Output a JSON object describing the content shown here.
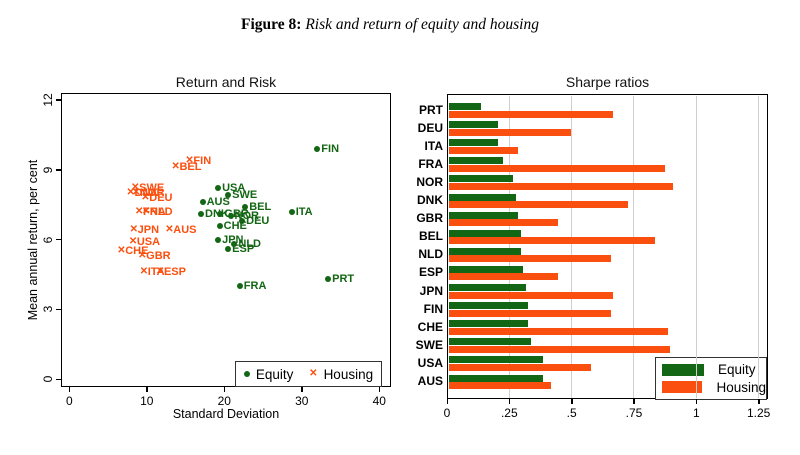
{
  "figure_caption": {
    "label": "Figure 8:",
    "title": "Risk and return of equity and housing"
  },
  "colors": {
    "equity": "#136613",
    "housing": "#fb4f0f",
    "grid": "#cfcfcf",
    "axis": "#000000"
  },
  "chart_data": [
    {
      "id": "return_risk",
      "type": "scatter",
      "title": "Return and Risk",
      "xlabel": "Standard Deviation",
      "ylabel": "Mean annual return, per cent",
      "xlim": [
        0,
        40
      ],
      "ylim": [
        0,
        12
      ],
      "xticks": [
        0,
        10,
        20,
        30,
        40
      ],
      "yticks": [
        0,
        3,
        6,
        9,
        12
      ],
      "grid": false,
      "legend": {
        "position": "bottom-right",
        "entries": [
          {
            "label": "Equity",
            "marker": "dot"
          },
          {
            "label": "Housing",
            "marker": "cross"
          }
        ]
      },
      "series": [
        {
          "name": "Equity",
          "marker": "dot",
          "points": [
            {
              "label": "FIN",
              "x": 32.0,
              "y": 9.9
            },
            {
              "label": "USA",
              "x": 19.2,
              "y": 8.2
            },
            {
              "label": "SWE",
              "x": 20.5,
              "y": 7.9
            },
            {
              "label": "AUS",
              "x": 17.2,
              "y": 7.6
            },
            {
              "label": "BEL",
              "x": 22.7,
              "y": 7.4
            },
            {
              "label": "ITA",
              "x": 28.7,
              "y": 7.2
            },
            {
              "label": "DNK",
              "x": 17.0,
              "y": 7.1
            },
            {
              "label": "GBR",
              "x": 19.5,
              "y": 7.1
            },
            {
              "label": "NOR",
              "x": 20.8,
              "y": 7.0
            },
            {
              "label": "DEU",
              "x": 22.3,
              "y": 6.8
            },
            {
              "label": "CHE",
              "x": 19.4,
              "y": 6.6
            },
            {
              "label": "JPN",
              "x": 19.2,
              "y": 6.0
            },
            {
              "label": "NLD",
              "x": 21.3,
              "y": 5.8
            },
            {
              "label": "ESP",
              "x": 20.5,
              "y": 5.6
            },
            {
              "label": "FRA",
              "x": 22.0,
              "y": 4.0
            },
            {
              "label": "PRT",
              "x": 33.4,
              "y": 4.3
            }
          ]
        },
        {
          "name": "Housing",
          "marker": "cross",
          "points": [
            {
              "label": "FIN",
              "x": 15.5,
              "y": 9.4
            },
            {
              "label": "BEL",
              "x": 13.7,
              "y": 9.1
            },
            {
              "label": "SWE",
              "x": 8.5,
              "y": 8.2
            },
            {
              "label": "DNK",
              "x": 7.9,
              "y": 8.0
            },
            {
              "label": "NOR",
              "x": 8.6,
              "y": 8.0
            },
            {
              "label": "DEU",
              "x": 9.8,
              "y": 7.8
            },
            {
              "label": "FRA",
              "x": 9.0,
              "y": 7.2
            },
            {
              "label": "NLD",
              "x": 9.9,
              "y": 7.2
            },
            {
              "label": "JPN",
              "x": 8.3,
              "y": 6.4
            },
            {
              "label": "AUS",
              "x": 12.9,
              "y": 6.4
            },
            {
              "label": "USA",
              "x": 8.2,
              "y": 5.9
            },
            {
              "label": "CHE",
              "x": 6.7,
              "y": 5.5
            },
            {
              "label": "GBR",
              "x": 9.4,
              "y": 5.3
            },
            {
              "label": "ITA",
              "x": 9.6,
              "y": 4.6
            },
            {
              "label": "ESP",
              "x": 11.7,
              "y": 4.6
            }
          ]
        }
      ]
    },
    {
      "id": "sharpe_ratios",
      "type": "bar",
      "orientation": "horizontal",
      "title": "Sharpe ratios",
      "categories": [
        "PRT",
        "DEU",
        "ITA",
        "FRA",
        "NOR",
        "DNK",
        "GBR",
        "BEL",
        "NLD",
        "ESP",
        "JPN",
        "FIN",
        "CHE",
        "SWE",
        "USA",
        "AUS"
      ],
      "series": [
        {
          "name": "Equity",
          "values": [
            0.13,
            0.2,
            0.2,
            0.22,
            0.26,
            0.27,
            0.28,
            0.29,
            0.29,
            0.3,
            0.31,
            0.32,
            0.32,
            0.33,
            0.38,
            0.38
          ]
        },
        {
          "name": "Housing",
          "values": [
            0.66,
            0.49,
            0.28,
            0.87,
            0.9,
            0.72,
            0.44,
            0.83,
            0.65,
            0.44,
            0.66,
            0.65,
            0.88,
            0.89,
            0.57,
            0.41
          ]
        }
      ],
      "xticks": [
        0,
        0.25,
        0.5,
        0.75,
        1,
        1.25
      ],
      "xtick_labels": [
        "0",
        ".25",
        ".5",
        ".75",
        "1",
        "1.25"
      ],
      "xlim": [
        0,
        1.29
      ],
      "grid": "vertical",
      "legend": {
        "position": "bottom-right",
        "entries": [
          {
            "label": "Equity"
          },
          {
            "label": "Housing"
          }
        ]
      }
    }
  ]
}
